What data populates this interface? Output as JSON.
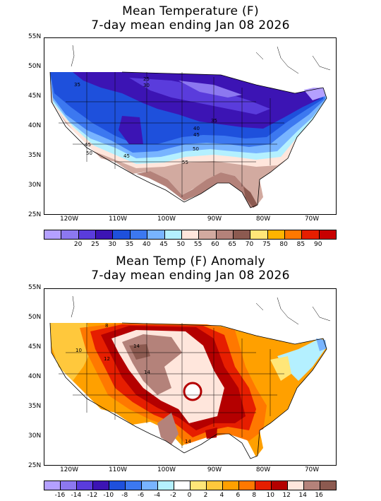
{
  "top": {
    "title1": "Mean Temperature (F)",
    "title2": "7-day mean ending Jan 08 2026",
    "lat_labels": [
      "55N",
      "50N",
      "45N",
      "40N",
      "35N",
      "30N",
      "25N"
    ],
    "lon_labels": [
      "120W",
      "110W",
      "100W",
      "90W",
      "80W",
      "70W"
    ],
    "colorbar": {
      "colors": [
        "#b4a0ff",
        "#8c78f0",
        "#5a3cdc",
        "#3c14b4",
        "#1e50dc",
        "#3c78f0",
        "#78b4ff",
        "#b4f0ff",
        "#ffe6dc",
        "#d2aaa0",
        "#b4827a",
        "#8c5a50",
        "#ffe678",
        "#ffb400",
        "#ff7800",
        "#e61e00",
        "#c80000"
      ],
      "labels": [
        "20",
        "25",
        "30",
        "35",
        "40",
        "45",
        "50",
        "55",
        "60",
        "65",
        "70",
        "75",
        "80",
        "85",
        "90"
      ]
    },
    "contour_labels": [
      "35",
      "25",
      "30",
      "35",
      "40",
      "45",
      "45",
      "50",
      "50",
      "45",
      "55"
    ]
  },
  "bottom": {
    "title1": "Mean Temp (F) Anomaly",
    "title2": "7-day mean ending Jan 08 2026",
    "lat_labels": [
      "55N",
      "50N",
      "45N",
      "40N",
      "35N",
      "30N",
      "25N"
    ],
    "lon_labels": [
      "120W",
      "110W",
      "100W",
      "90W",
      "80W",
      "70W"
    ],
    "colorbar": {
      "colors": [
        "#b4a0ff",
        "#8c78f0",
        "#5a3cdc",
        "#3c14b4",
        "#1e50dc",
        "#3c78f0",
        "#78b4ff",
        "#b4f0ff",
        "#ffffff",
        "#ffe678",
        "#ffc83c",
        "#ffa000",
        "#ff7800",
        "#e61e00",
        "#b40000",
        "#ffe6dc",
        "#b4827a",
        "#8c5a50"
      ],
      "labels": [
        "-16",
        "-14",
        "-12",
        "-10",
        "-8",
        "-6",
        "-4",
        "-2",
        "0",
        "2",
        "4",
        "6",
        "8",
        "10",
        "12",
        "14",
        "16"
      ]
    },
    "contour_labels": [
      "8",
      "10",
      "12",
      "14",
      "14",
      "14"
    ]
  }
}
